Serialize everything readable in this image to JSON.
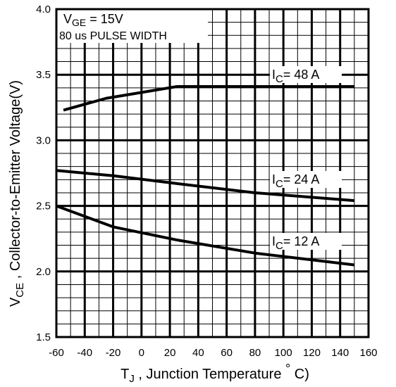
{
  "chart_data": {
    "type": "line",
    "xlabel_symbol": "T",
    "xlabel_sub": "J",
    "xlabel_text": " , Junction Temperature ",
    "xlabel_degree": "°",
    "xlabel_unit": " C)",
    "ylabel_symbol": "V",
    "ylabel_sub": "CE",
    "ylabel_text": " , Collector-to-Emitter Voltage(V)",
    "xlim": [
      -60,
      160
    ],
    "ylim": [
      1.5,
      4.0
    ],
    "xticks": [
      "-60",
      "-40",
      "-20",
      "0",
      "20",
      "40",
      "60",
      "80",
      "100",
      "120",
      "140",
      "160"
    ],
    "yticks": [
      "1.5",
      "2.0",
      "2.5",
      "3.0",
      "3.5",
      "4.0"
    ],
    "grid": true,
    "series": [
      {
        "name": "IC = 48 A",
        "x": [
          -55,
          -25,
          25,
          150
        ],
        "y": [
          3.23,
          3.32,
          3.41,
          3.41
        ]
      },
      {
        "name": "IC = 24 A",
        "x": [
          -60,
          -20,
          25,
          80,
          150
        ],
        "y": [
          2.77,
          2.73,
          2.67,
          2.6,
          2.54
        ]
      },
      {
        "name": "IC = 12 A",
        "x": [
          -60,
          -20,
          25,
          80,
          150
        ],
        "y": [
          2.5,
          2.34,
          2.24,
          2.14,
          2.05
        ]
      }
    ],
    "annotations": {
      "vge_symbol": "V",
      "vge_sub": "GE",
      "vge_value": " = 15V",
      "pulse": "80 us PULSE WIDTH",
      "ic_symbol": "I",
      "ic_sub": "C",
      "ic48": "=  48 A",
      "ic24": "=  24 A",
      "ic12": "=  12 A"
    }
  }
}
